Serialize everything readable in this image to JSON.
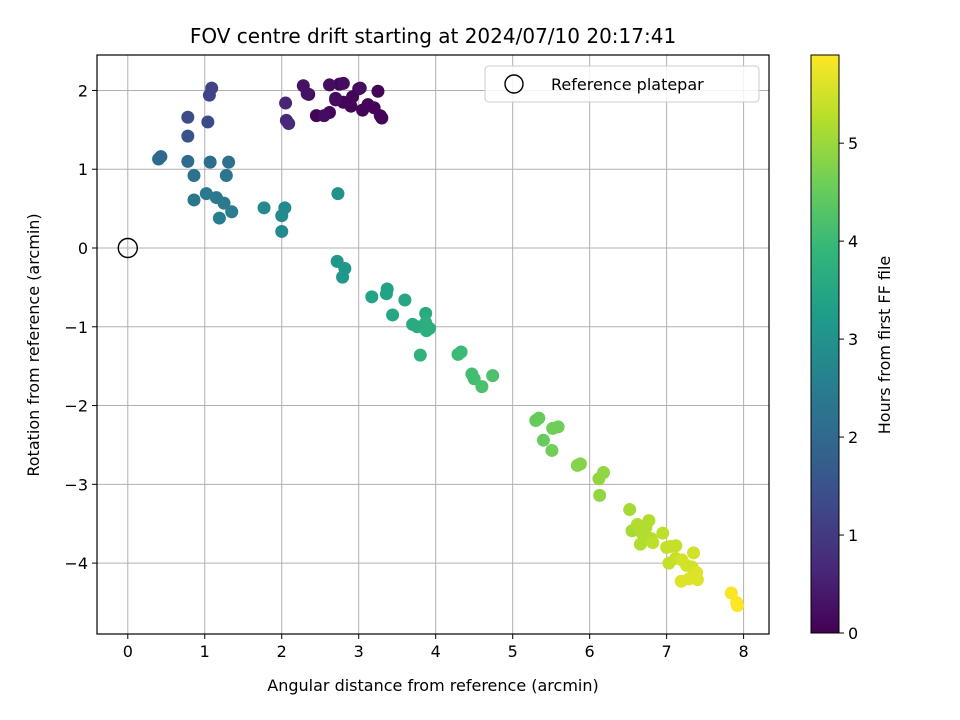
{
  "chart_data": {
    "type": "scatter",
    "title": "FOV centre drift starting at 2024/07/10 20:17:41",
    "xlabel": "Angular distance from reference (arcmin)",
    "ylabel": "Rotation from reference (arcmin)",
    "xlim": [
      -0.4,
      8.33
    ],
    "ylim": [
      -4.9,
      2.45
    ],
    "xticks": [
      "0",
      "1",
      "2",
      "3",
      "4",
      "5",
      "6",
      "7",
      "8"
    ],
    "yticks": [
      "−4",
      "−3",
      "−2",
      "−1",
      "0",
      "1",
      "2"
    ],
    "grid": true,
    "legend": {
      "placement": "top-right",
      "label": "Reference platepar"
    },
    "reference_point": {
      "x": 0,
      "y": 0
    },
    "colorbar": {
      "label": "Hours from first FF file",
      "range": [
        0,
        5.9
      ],
      "ticks": [
        "0",
        "1",
        "2",
        "3",
        "4",
        "5"
      ],
      "colormap": "viridis",
      "colors": [
        "#440154",
        "#482878",
        "#3e4a89",
        "#31688e",
        "#26828e",
        "#1f9e89",
        "#35b779",
        "#6ece58",
        "#b5de2b",
        "#fde725"
      ]
    },
    "points": [
      {
        "x": 2.35,
        "y": 1.95,
        "h": 0.05
      },
      {
        "x": 2.45,
        "y": 1.68,
        "h": 0.05
      },
      {
        "x": 2.62,
        "y": 1.72,
        "h": 0.05
      },
      {
        "x": 2.7,
        "y": 1.9,
        "h": 0.05
      },
      {
        "x": 2.75,
        "y": 2.08,
        "h": 0.05
      },
      {
        "x": 2.8,
        "y": 1.85,
        "h": 0.05
      },
      {
        "x": 2.9,
        "y": 1.8,
        "h": 0.05
      },
      {
        "x": 3.0,
        "y": 2.02,
        "h": 0.05
      },
      {
        "x": 3.05,
        "y": 1.75,
        "h": 0.05
      },
      {
        "x": 3.12,
        "y": 1.82,
        "h": 0.05
      },
      {
        "x": 3.2,
        "y": 1.78,
        "h": 0.05
      },
      {
        "x": 3.28,
        "y": 1.68,
        "h": 0.05
      },
      {
        "x": 3.3,
        "y": 1.65,
        "h": 0.05
      },
      {
        "x": 3.25,
        "y": 1.99,
        "h": 0.05
      },
      {
        "x": 2.92,
        "y": 1.92,
        "h": 0.05
      },
      {
        "x": 2.55,
        "y": 1.68,
        "h": 0.2
      },
      {
        "x": 2.62,
        "y": 2.07,
        "h": 0.2
      },
      {
        "x": 2.7,
        "y": 1.88,
        "h": 0.2
      },
      {
        "x": 2.8,
        "y": 2.09,
        "h": 0.2
      },
      {
        "x": 3.02,
        "y": 2.03,
        "h": 0.2
      },
      {
        "x": 2.28,
        "y": 2.06,
        "h": 0.3
      },
      {
        "x": 2.33,
        "y": 1.96,
        "h": 0.3
      },
      {
        "x": 2.05,
        "y": 1.84,
        "h": 0.6
      },
      {
        "x": 2.06,
        "y": 1.62,
        "h": 0.7
      },
      {
        "x": 2.09,
        "y": 1.58,
        "h": 0.7
      },
      {
        "x": 1.09,
        "y": 2.03,
        "h": 1.2
      },
      {
        "x": 1.06,
        "y": 1.94,
        "h": 1.2
      },
      {
        "x": 1.04,
        "y": 1.6,
        "h": 1.3
      },
      {
        "x": 0.78,
        "y": 1.66,
        "h": 1.4
      },
      {
        "x": 0.78,
        "y": 1.42,
        "h": 1.5
      },
      {
        "x": 0.43,
        "y": 1.16,
        "h": 2.0
      },
      {
        "x": 0.4,
        "y": 1.13,
        "h": 2.0
      },
      {
        "x": 0.78,
        "y": 1.1,
        "h": 2.1
      },
      {
        "x": 1.07,
        "y": 1.09,
        "h": 2.1
      },
      {
        "x": 1.31,
        "y": 1.09,
        "h": 2.2
      },
      {
        "x": 0.86,
        "y": 0.92,
        "h": 2.2
      },
      {
        "x": 1.28,
        "y": 0.92,
        "h": 2.3
      },
      {
        "x": 0.86,
        "y": 0.61,
        "h": 2.3
      },
      {
        "x": 1.02,
        "y": 0.69,
        "h": 2.4
      },
      {
        "x": 1.15,
        "y": 0.64,
        "h": 2.4
      },
      {
        "x": 1.25,
        "y": 0.57,
        "h": 2.4
      },
      {
        "x": 1.35,
        "y": 0.46,
        "h": 2.5
      },
      {
        "x": 1.19,
        "y": 0.38,
        "h": 2.5
      },
      {
        "x": 1.77,
        "y": 0.51,
        "h": 2.8
      },
      {
        "x": 2.04,
        "y": 0.51,
        "h": 2.8
      },
      {
        "x": 2.0,
        "y": 0.41,
        "h": 2.8
      },
      {
        "x": 2.0,
        "y": 0.21,
        "h": 2.8
      },
      {
        "x": 2.73,
        "y": 0.69,
        "h": 3.0
      },
      {
        "x": 2.72,
        "y": -0.17,
        "h": 3.1
      },
      {
        "x": 2.82,
        "y": -0.26,
        "h": 3.1
      },
      {
        "x": 2.79,
        "y": -0.37,
        "h": 3.1
      },
      {
        "x": 3.17,
        "y": -0.62,
        "h": 3.4
      },
      {
        "x": 3.37,
        "y": -0.52,
        "h": 3.4
      },
      {
        "x": 3.36,
        "y": -0.58,
        "h": 3.4
      },
      {
        "x": 3.44,
        "y": -0.85,
        "h": 3.5
      },
      {
        "x": 3.6,
        "y": -0.66,
        "h": 3.5
      },
      {
        "x": 3.7,
        "y": -0.97,
        "h": 3.6
      },
      {
        "x": 3.76,
        "y": -1.0,
        "h": 3.6
      },
      {
        "x": 3.87,
        "y": -0.83,
        "h": 3.6
      },
      {
        "x": 3.87,
        "y": -0.95,
        "h": 3.7
      },
      {
        "x": 3.88,
        "y": -1.05,
        "h": 3.7
      },
      {
        "x": 3.92,
        "y": -1.02,
        "h": 3.7
      },
      {
        "x": 3.8,
        "y": -1.36,
        "h": 3.8
      },
      {
        "x": 4.29,
        "y": -1.35,
        "h": 4.0
      },
      {
        "x": 4.33,
        "y": -1.32,
        "h": 4.0
      },
      {
        "x": 4.47,
        "y": -1.6,
        "h": 4.1
      },
      {
        "x": 4.5,
        "y": -1.66,
        "h": 4.1
      },
      {
        "x": 4.6,
        "y": -1.76,
        "h": 4.2
      },
      {
        "x": 4.74,
        "y": -1.62,
        "h": 4.2
      },
      {
        "x": 5.3,
        "y": -2.19,
        "h": 4.5
      },
      {
        "x": 5.34,
        "y": -2.16,
        "h": 4.5
      },
      {
        "x": 5.4,
        "y": -2.44,
        "h": 4.5
      },
      {
        "x": 5.51,
        "y": -2.57,
        "h": 4.6
      },
      {
        "x": 5.52,
        "y": -2.29,
        "h": 4.6
      },
      {
        "x": 5.59,
        "y": -2.27,
        "h": 4.6
      },
      {
        "x": 5.84,
        "y": -2.76,
        "h": 4.8
      },
      {
        "x": 5.88,
        "y": -2.74,
        "h": 4.8
      },
      {
        "x": 6.12,
        "y": -2.93,
        "h": 4.9
      },
      {
        "x": 6.18,
        "y": -2.85,
        "h": 4.9
      },
      {
        "x": 6.13,
        "y": -3.14,
        "h": 4.9
      },
      {
        "x": 6.52,
        "y": -3.32,
        "h": 5.1
      },
      {
        "x": 6.55,
        "y": -3.59,
        "h": 5.1
      },
      {
        "x": 6.62,
        "y": -3.51,
        "h": 5.2
      },
      {
        "x": 6.68,
        "y": -3.62,
        "h": 5.2
      },
      {
        "x": 6.66,
        "y": -3.76,
        "h": 5.2
      },
      {
        "x": 6.73,
        "y": -3.55,
        "h": 5.2
      },
      {
        "x": 6.77,
        "y": -3.46,
        "h": 5.2
      },
      {
        "x": 6.8,
        "y": -3.69,
        "h": 5.2
      },
      {
        "x": 6.82,
        "y": -3.74,
        "h": 5.3
      },
      {
        "x": 6.95,
        "y": -3.62,
        "h": 5.3
      },
      {
        "x": 7.0,
        "y": -3.8,
        "h": 5.4
      },
      {
        "x": 7.05,
        "y": -3.79,
        "h": 5.4
      },
      {
        "x": 7.12,
        "y": -3.78,
        "h": 5.4
      },
      {
        "x": 7.03,
        "y": -4.0,
        "h": 5.4
      },
      {
        "x": 7.12,
        "y": -3.94,
        "h": 5.4
      },
      {
        "x": 7.2,
        "y": -3.96,
        "h": 5.5
      },
      {
        "x": 7.26,
        "y": -4.03,
        "h": 5.5
      },
      {
        "x": 7.33,
        "y": -4.05,
        "h": 5.5
      },
      {
        "x": 7.35,
        "y": -3.87,
        "h": 5.5
      },
      {
        "x": 7.36,
        "y": -4.16,
        "h": 5.6
      },
      {
        "x": 7.39,
        "y": -4.12,
        "h": 5.6
      },
      {
        "x": 7.4,
        "y": -4.21,
        "h": 5.6
      },
      {
        "x": 7.29,
        "y": -4.2,
        "h": 5.6
      },
      {
        "x": 7.19,
        "y": -4.23,
        "h": 5.6
      },
      {
        "x": 7.84,
        "y": -4.38,
        "h": 5.85
      },
      {
        "x": 7.91,
        "y": -4.5,
        "h": 5.85
      },
      {
        "x": 7.92,
        "y": -4.54,
        "h": 5.9
      }
    ]
  }
}
